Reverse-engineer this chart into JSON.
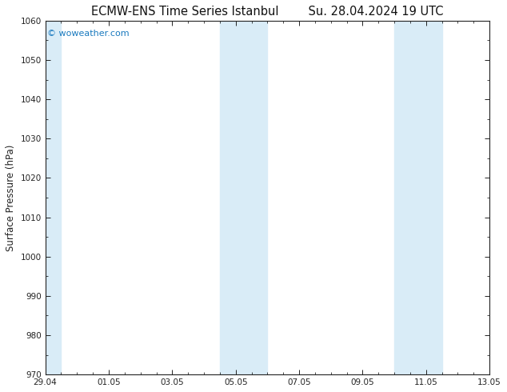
{
  "title": "ECMW-ENS Time Series Istanbul        Su. 28.04.2024 19 UTC",
  "ylabel": "Surface Pressure (hPa)",
  "ylim": [
    970,
    1060
  ],
  "yticks": [
    970,
    980,
    990,
    1000,
    1010,
    1020,
    1030,
    1040,
    1050,
    1060
  ],
  "xtick_labels": [
    "29.04",
    "01.05",
    "03.05",
    "05.05",
    "07.05",
    "09.05",
    "11.05",
    "13.05"
  ],
  "xtick_positions": [
    0,
    2,
    4,
    6,
    8,
    10,
    12,
    14
  ],
  "shaded_bands": [
    {
      "x_start": 0.0,
      "x_end": 0.5
    },
    {
      "x_start": 5.5,
      "x_end": 7.0
    },
    {
      "x_start": 11.0,
      "x_end": 12.5
    }
  ],
  "shaded_color": "#d9ecf7",
  "background_color": "#ffffff",
  "plot_bg_color": "#ffffff",
  "watermark_text": "© woweather.com",
  "watermark_color": "#1a7abf",
  "title_color": "#111111",
  "axis_color": "#222222",
  "title_fontsize": 10.5,
  "label_fontsize": 8.5,
  "tick_fontsize": 7.5,
  "x_total": 14,
  "fig_width": 6.34,
  "fig_height": 4.9,
  "dpi": 100
}
